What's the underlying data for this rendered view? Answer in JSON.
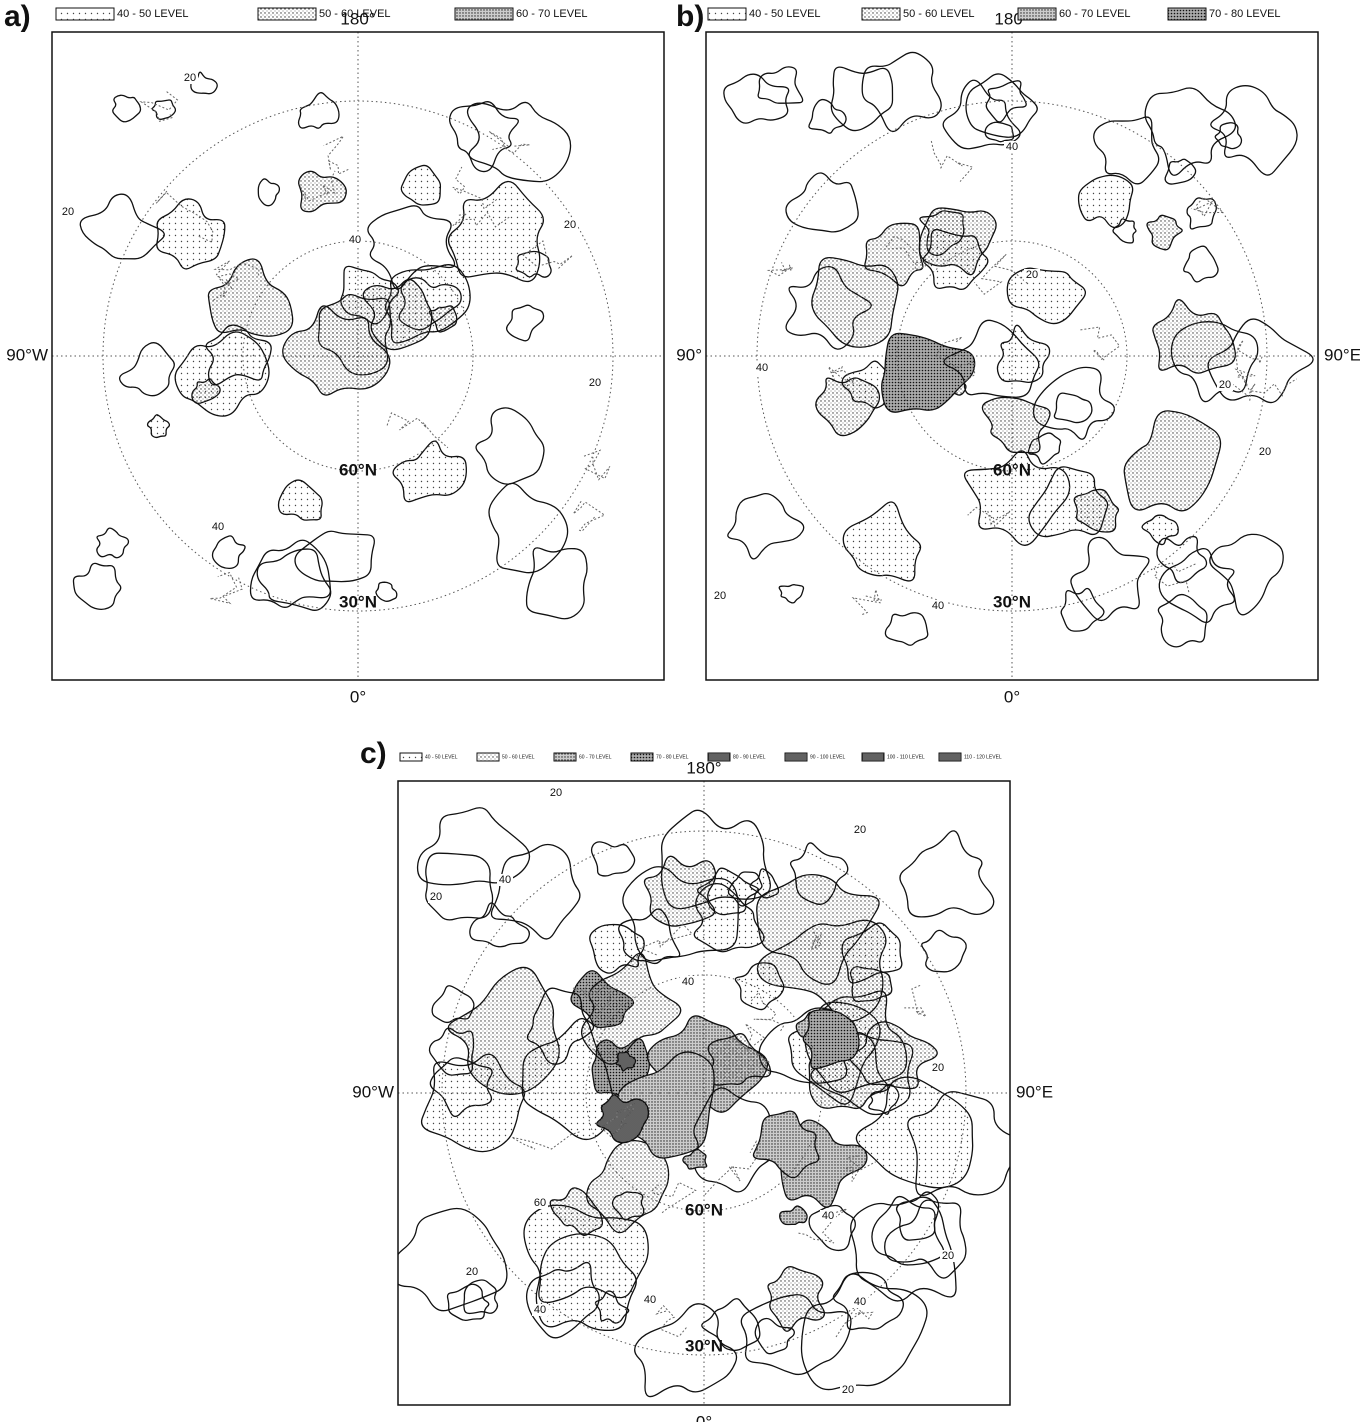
{
  "panels": [
    {
      "label": "a)",
      "legend": [
        "40 - 50 LEVEL",
        "50 - 60 LEVEL",
        "60 - 70 LEVEL"
      ],
      "top": "180°",
      "left": "90°W",
      "bottom": "0°",
      "lat_labels": [
        "60°N",
        "30°N"
      ],
      "contour_labels": [
        "20",
        "20",
        "40",
        "20",
        "20",
        "40"
      ]
    },
    {
      "label": "b)",
      "legend": [
        "40 - 50 LEVEL",
        "50 - 60 LEVEL",
        "60 - 70 LEVEL",
        "70 - 80 LEVEL"
      ],
      "top": "180°",
      "left": "90°",
      "right": "90°E",
      "bottom": "0°",
      "lat_labels": [
        "60°N",
        "30°N"
      ],
      "contour_labels": [
        "40",
        "20",
        "40",
        "20",
        "20",
        "20",
        "40"
      ]
    },
    {
      "label": "c)",
      "legend": [
        "40 - 50 LEVEL",
        "50 - 60 LEVEL",
        "60 - 70 LEVEL",
        "70 - 80 LEVEL",
        "80 - 90 LEVEL",
        "90 - 100 LEVEL",
        "100 - 110 LEVEL",
        "110 - 120 LEVEL"
      ],
      "top": "180°",
      "left": "90°W",
      "right": "90°E",
      "bottom": "0°",
      "lat_labels": [
        "60°N",
        "30°N"
      ],
      "contour_labels": [
        "20",
        "20",
        "40",
        "20",
        "40",
        "20",
        "60",
        "40",
        "20",
        "20",
        "40",
        "40",
        "40",
        "20"
      ]
    }
  ]
}
